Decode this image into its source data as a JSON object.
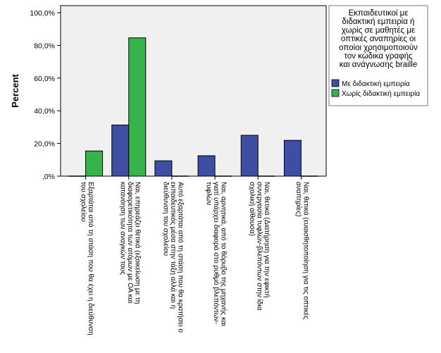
{
  "chart_data": {
    "type": "bar",
    "ylabel": "Percent",
    "ylim": [
      0,
      100
    ],
    "yticks": [
      "100,0%",
      "80,0%",
      "60,0%",
      "40,0%",
      "20,0%",
      ",0%"
    ],
    "ytick_values": [
      100,
      80,
      60,
      40,
      20,
      0
    ],
    "grid": false,
    "legend_position": "right",
    "legend_title_lines": [
      "Εκπαιδευτικοί με",
      "διδακτική εμπειρία ή",
      "χωρίς σε μαθητές με",
      "οπτικές αναπηρίες οι",
      "οποίοι χρησιμοποιούν",
      "τον κώδικα γραφής",
      "και ανάγνωσης braille"
    ],
    "categories": [
      {
        "lines": [
          "Εξαρτάται από τη στάση που θα έχει η διεύθυνση",
          "του σχολείου"
        ]
      },
      {
        "lines": [
          "Ναι, επηρεάζει θετικά (εξοικείωση με τη",
          "διαφορετικότητα των ατόμων με ΟΑ και",
          "κατανόηση των αναγκών τους"
        ]
      },
      {
        "lines": [
          "Αυτό εξαρτάται από τη στάση που θα κρατήσει ο",
          "εκπαιδευτικός μέσα στην τάξη αλλά και η",
          "διεύθυνση του σχολείου"
        ]
      },
      {
        "lines": [
          "Ναι, αρνητικά, από το θόρυβο της μηχανής και",
          "γιατί υπάρχει διαφορά στο ρυθμό βλεπόντων-",
          "τυφλών"
        ]
      },
      {
        "lines": [
          "Ναι, θετικά (Διατήρηση για την εφικτή",
          "συνεργασία τυφλών-βλεπόντων στην ίδια",
          "σχολική αίθουσα)"
        ]
      },
      {
        "lines": [
          "Ναι, θετικά (ευαισθητοποίηση για τις οπτικές",
          "αναπηρίες)"
        ]
      }
    ],
    "series": [
      {
        "name": "Με διδακτική εμπειρία",
        "color": "#3e4fa3",
        "values": [
          0,
          31.3,
          9.4,
          12.5,
          25.0,
          21.9
        ]
      },
      {
        "name": "Χωρίς διδακτική εμπειρία",
        "color": "#36b34a",
        "values": [
          15.4,
          84.6,
          0,
          0,
          0,
          0
        ]
      }
    ],
    "plot_background": "#f0f0f0"
  }
}
